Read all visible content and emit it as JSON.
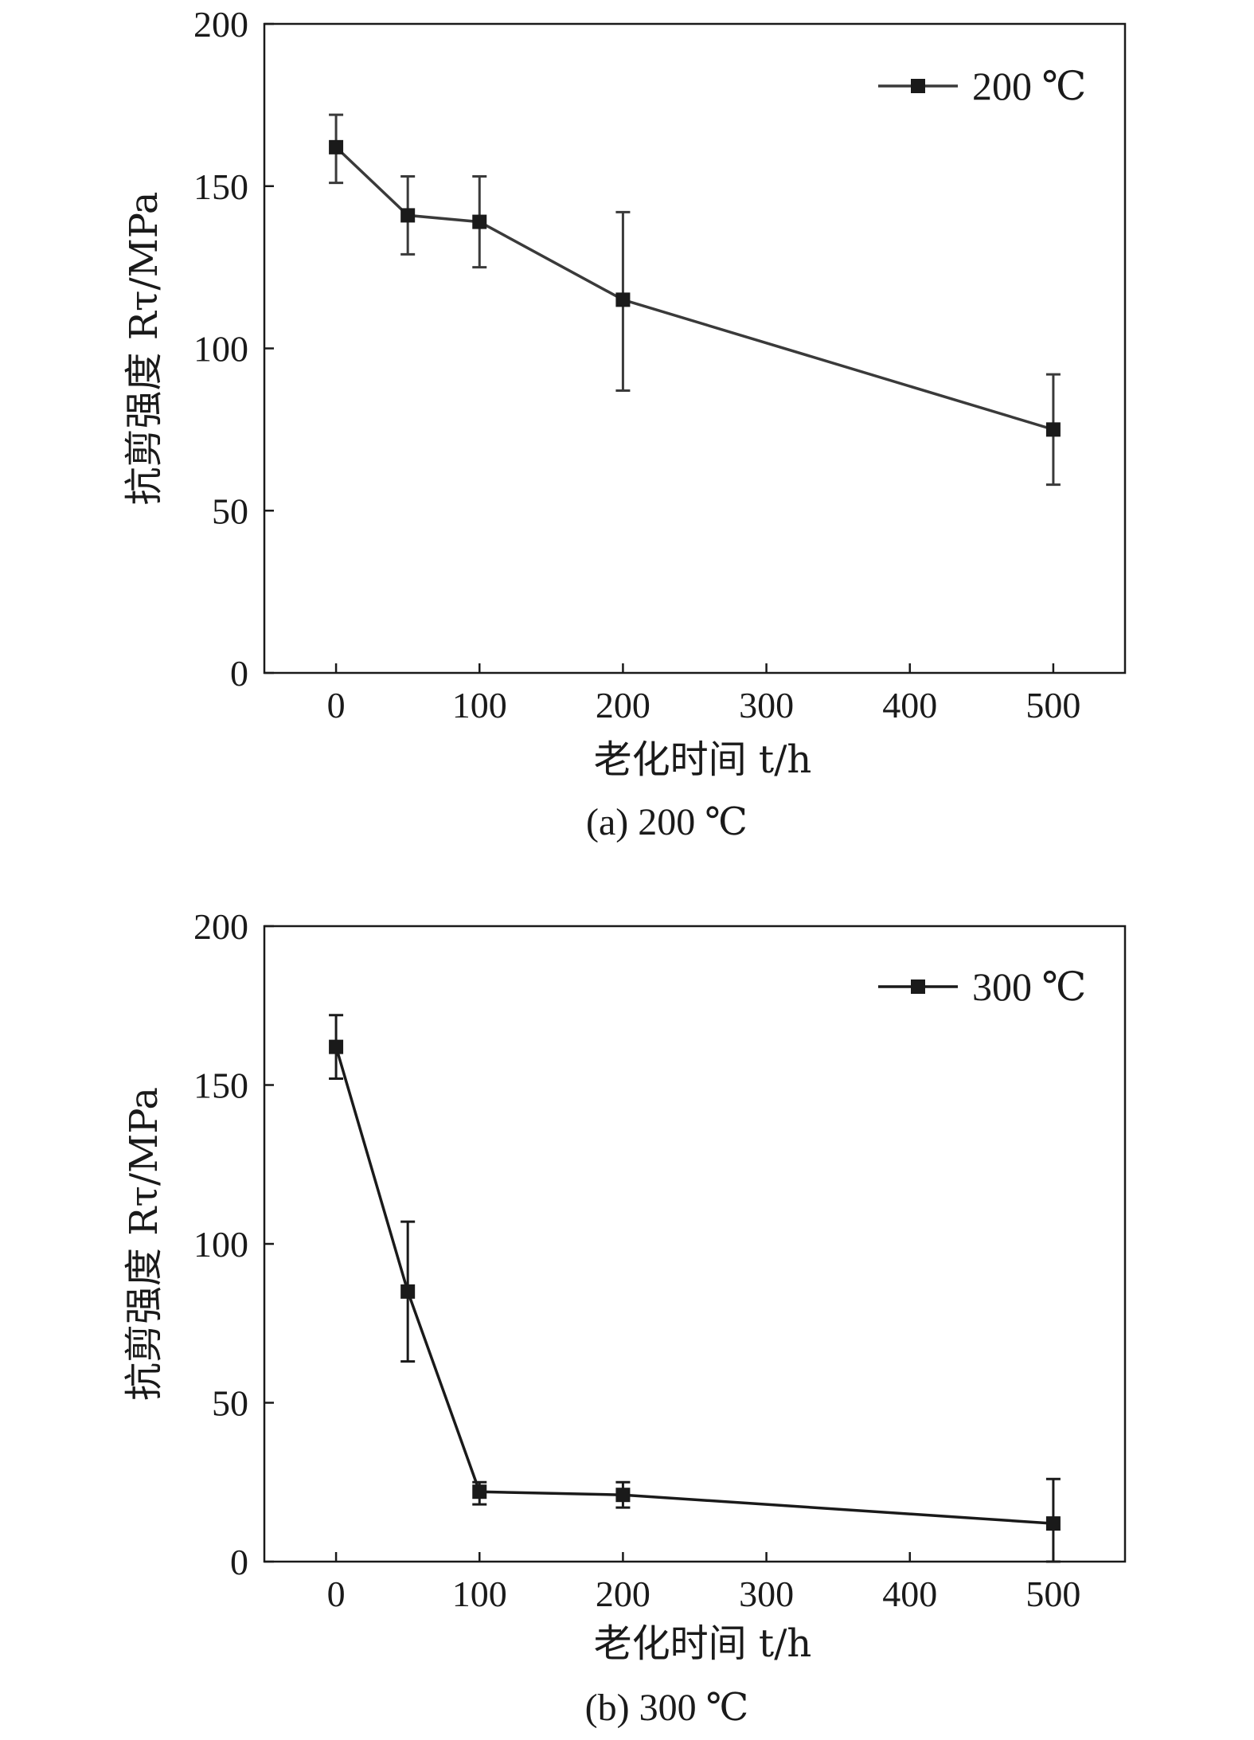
{
  "chart_data": [
    {
      "type": "line",
      "caption": "(a) 200 ℃",
      "xlabel": "老化时间 t/h",
      "ylabel": "抗剪强度 Rτ/MPa",
      "xlim": [
        -50,
        550
      ],
      "ylim": [
        0,
        200
      ],
      "xticks": [
        0,
        100,
        200,
        300,
        400,
        500
      ],
      "yticks": [
        0,
        50,
        100,
        150,
        200
      ],
      "legend_position": "top-right",
      "grid": false,
      "series": [
        {
          "name": "200 ℃",
          "color": "#3a3a3a",
          "x": [
            0,
            50,
            100,
            200,
            500
          ],
          "y": [
            162,
            141,
            139,
            115,
            75
          ],
          "err_low": [
            151,
            129,
            125,
            87,
            58
          ],
          "err_high": [
            172,
            153,
            153,
            142,
            92
          ]
        }
      ]
    },
    {
      "type": "line",
      "caption": "(b) 300 ℃",
      "xlabel": "老化时间 t/h",
      "ylabel": "抗剪强度 Rτ/MPa",
      "xlim": [
        -50,
        550
      ],
      "ylim": [
        0,
        200
      ],
      "xticks": [
        0,
        100,
        200,
        300,
        400,
        500
      ],
      "yticks": [
        0,
        50,
        100,
        150,
        200
      ],
      "legend_position": "top-right",
      "grid": false,
      "series": [
        {
          "name": "300 ℃",
          "color": "#1a1a1a",
          "x": [
            0,
            50,
            100,
            200,
            500
          ],
          "y": [
            162,
            85,
            22,
            21,
            12
          ],
          "err_low": [
            152,
            63,
            18,
            17,
            0
          ],
          "err_high": [
            172,
            107,
            25,
            25,
            26
          ]
        }
      ]
    }
  ]
}
